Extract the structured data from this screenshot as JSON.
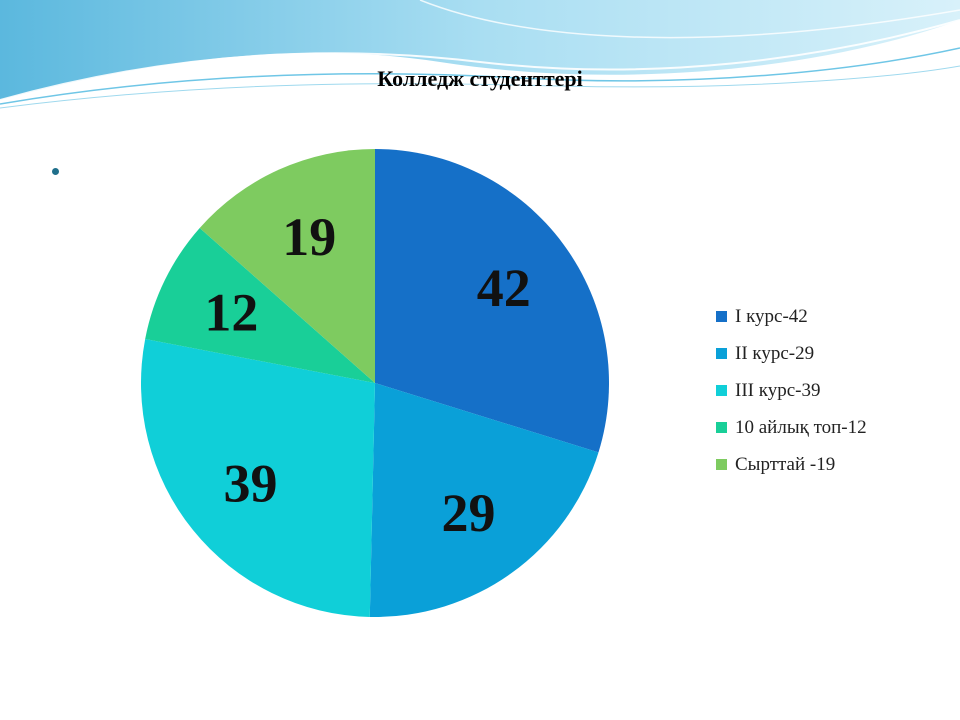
{
  "slide": {
    "bullet": "•"
  },
  "colors": {
    "wave_light": "#bfe7f4",
    "wave_mid": "#7ccbe6",
    "wave_dark": "#2f9fcf"
  },
  "chart_data": {
    "type": "pie",
    "title": "Колледж студенттері",
    "categories": [
      "І курс-42",
      "ІІ курс-29",
      "ІІІ курс-39",
      "10 айлық топ-12",
      "Сырттай -19"
    ],
    "values": [
      42,
      29,
      39,
      12,
      19
    ],
    "data_labels": [
      "42",
      "29",
      "39",
      "12",
      "19"
    ],
    "colors": [
      "#1570c8",
      "#0aa0d8",
      "#10cfd8",
      "#19cf98",
      "#7ecb60"
    ],
    "start_angle_deg": 0,
    "direction": "clockwise",
    "legend_position": "right"
  }
}
